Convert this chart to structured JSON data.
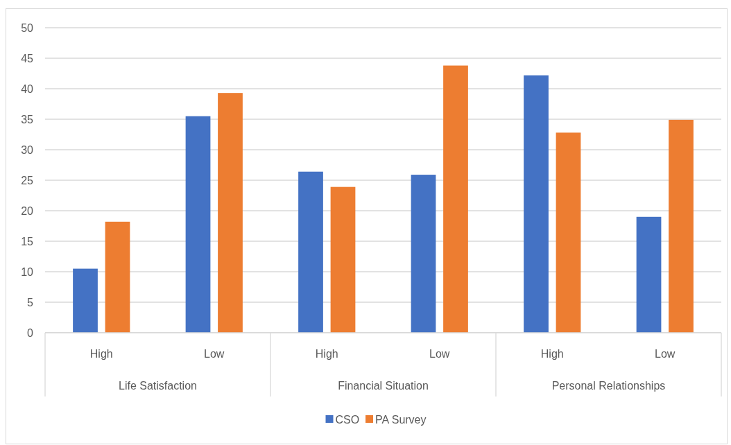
{
  "chart_data": {
    "type": "bar",
    "categories": [
      "High",
      "Low",
      "High",
      "Low",
      "High",
      "Low"
    ],
    "annotations": [
      "Life Satisfaction",
      "Financial Situation",
      "Personal Relationships"
    ],
    "series": [
      {
        "name": "CSO",
        "color": "#4472c4",
        "values": [
          10.5,
          35.5,
          26.4,
          25.9,
          42.2,
          19.0
        ]
      },
      {
        "name": "PA Survey",
        "color": "#ed7d31",
        "values": [
          18.2,
          39.3,
          23.9,
          43.8,
          32.8,
          34.9
        ]
      }
    ],
    "ylim": [
      0,
      50
    ],
    "yticks": [
      0,
      5,
      10,
      15,
      20,
      25,
      30,
      35,
      40,
      45,
      50
    ],
    "grid": "y",
    "legend": "bottom"
  }
}
